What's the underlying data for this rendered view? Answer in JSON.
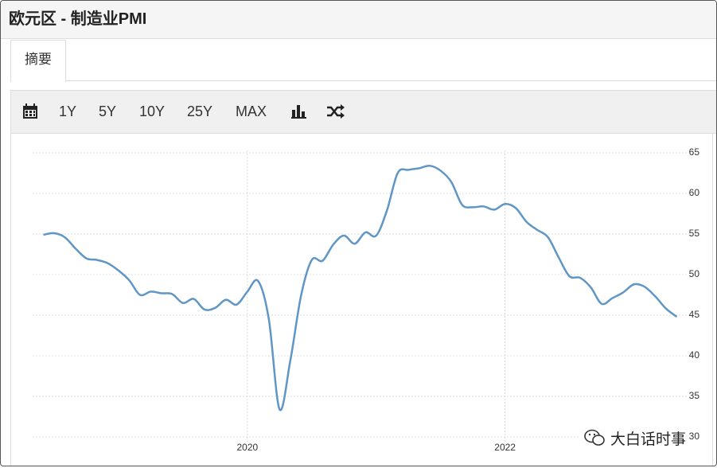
{
  "header": {
    "title": "欧元区 - 制造业PMI"
  },
  "tabs": [
    "摘要"
  ],
  "toolbar": [
    "1Y",
    "5Y",
    "10Y",
    "25Y",
    "MAX"
  ],
  "watermark": "大白话时事",
  "chart_data": {
    "type": "line",
    "x": [
      "2018-06",
      "2018-07",
      "2018-08",
      "2018-09",
      "2018-10",
      "2018-11",
      "2018-12",
      "2019-01",
      "2019-02",
      "2019-03",
      "2019-04",
      "2019-05",
      "2019-06",
      "2019-07",
      "2019-08",
      "2019-09",
      "2019-10",
      "2019-11",
      "2019-12",
      "2020-01",
      "2020-02",
      "2020-03",
      "2020-04",
      "2020-05",
      "2020-06",
      "2020-07",
      "2020-08",
      "2020-09",
      "2020-10",
      "2020-11",
      "2020-12",
      "2021-01",
      "2021-02",
      "2021-03",
      "2021-04",
      "2021-05",
      "2021-06",
      "2021-07",
      "2021-08",
      "2021-09",
      "2021-10",
      "2021-11",
      "2021-12",
      "2022-01",
      "2022-02",
      "2022-03",
      "2022-04",
      "2022-05",
      "2022-06",
      "2022-07",
      "2022-08",
      "2022-09",
      "2022-10",
      "2022-11",
      "2022-12",
      "2023-01",
      "2023-02",
      "2023-03",
      "2023-04",
      "2023-05"
    ],
    "series": [
      {
        "color": "#6096c6",
        "values": [
          54.9,
          55.1,
          54.6,
          53.2,
          52.0,
          51.8,
          51.4,
          50.5,
          49.3,
          47.5,
          47.9,
          47.7,
          47.6,
          46.5,
          47.0,
          45.7,
          45.9,
          46.9,
          46.3,
          47.9,
          49.2,
          44.5,
          33.4,
          39.4,
          47.4,
          51.8,
          51.7,
          53.7,
          54.8,
          53.8,
          55.2,
          54.8,
          57.9,
          62.5,
          62.9,
          63.1,
          63.4,
          62.8,
          61.4,
          58.6,
          58.3,
          58.4,
          58.0,
          58.7,
          58.2,
          56.5,
          55.5,
          54.6,
          52.1,
          49.8,
          49.6,
          48.4,
          46.4,
          47.1,
          47.8,
          48.8,
          48.5,
          47.3,
          45.8,
          44.8
        ]
      }
    ],
    "xlim": [
      "2018-05",
      "2023-06"
    ],
    "xticks": [
      {
        "value": "2020-01",
        "label": "2020"
      },
      {
        "value": "2022-01",
        "label": "2022"
      }
    ],
    "ylim": [
      30,
      65
    ],
    "yticks": [
      30,
      35,
      40,
      45,
      50,
      55,
      60,
      65
    ],
    "grid": true
  }
}
